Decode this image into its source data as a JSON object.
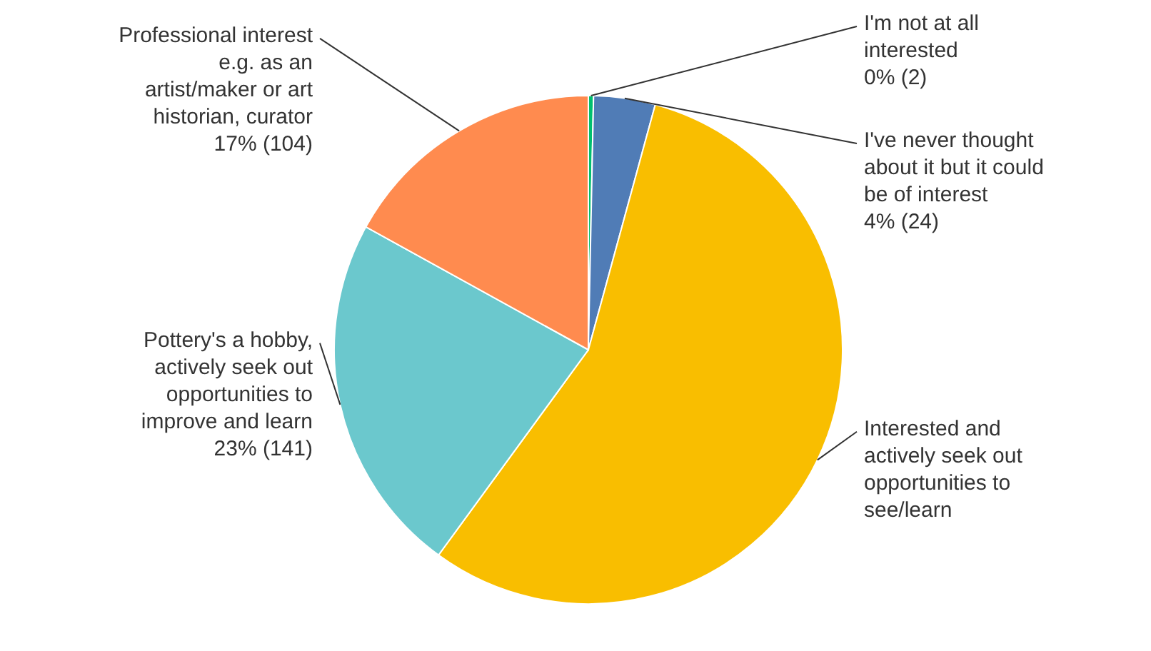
{
  "chart_data": {
    "type": "pie",
    "categories": [
      "I'm not at all interested",
      "I've never thought about it but it could be of interest",
      "Interested and actively seek out opportunities to see/learn",
      "Pottery's a hobby, actively seek out opportunities to improve and learn",
      "Professional interest e.g. as an artist/maker or art historian, curator"
    ],
    "values": [
      2,
      24,
      342,
      141,
      104
    ],
    "colors": [
      "#00bf6f",
      "#507cb6",
      "#f9be00",
      "#6bc8cd",
      "#ff8b4f"
    ],
    "value_labels": [
      "0% (2)",
      "4% (24)",
      null,
      "23% (141)",
      "17% (104)"
    ]
  }
}
